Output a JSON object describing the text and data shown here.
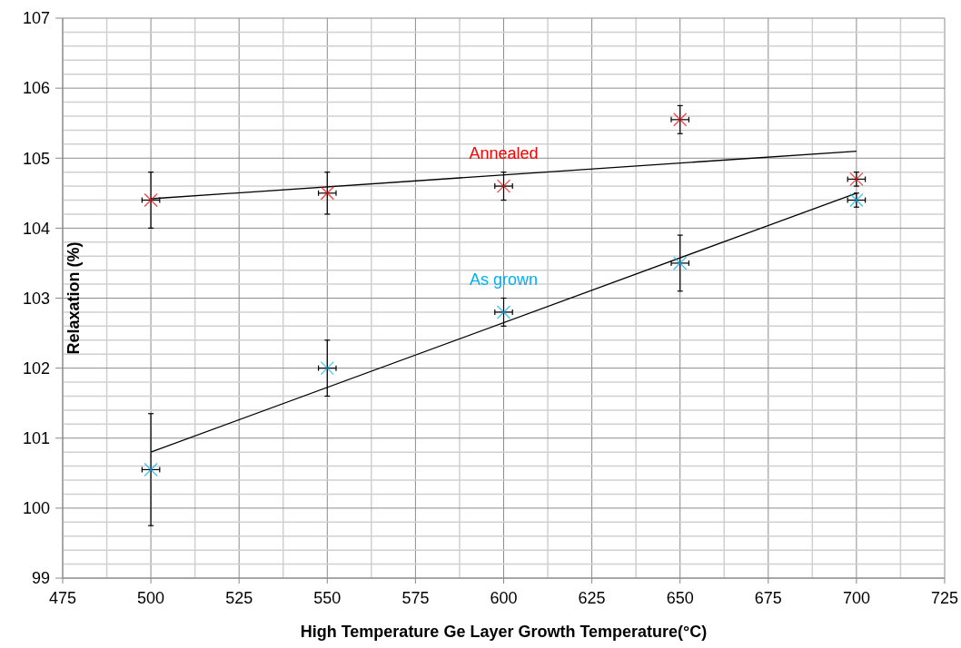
{
  "chart_data": {
    "type": "scatter",
    "xlabel": "High Temperature Ge Layer Growth Temperature(°C)",
    "ylabel": "Relaxation (%)",
    "xlim": [
      475,
      725
    ],
    "ylim": [
      99,
      107
    ],
    "xticks": [
      475,
      {
        "value": 487.5,
        "label": null
      },
      500,
      {
        "value": 512.5,
        "label": null
      },
      525,
      {
        "value": 537.5,
        "label": null
      },
      550,
      {
        "value": 562.5,
        "label": null
      },
      575,
      {
        "value": 587.5,
        "label": null
      },
      600,
      {
        "value": 612.5,
        "label": null
      },
      625,
      {
        "value": 637.5,
        "label": null
      },
      650,
      {
        "value": 662.5,
        "label": null
      },
      675,
      {
        "value": 687.5,
        "label": null
      },
      700,
      {
        "value": 712.5,
        "label": null
      },
      725
    ],
    "yticks": [
      99,
      {
        "value": 99.2,
        "label": null
      },
      {
        "value": 99.4,
        "label": null
      },
      {
        "value": 99.6,
        "label": null
      },
      {
        "value": 99.8,
        "label": null
      },
      100,
      {
        "value": 100.2,
        "label": null
      },
      {
        "value": 100.4,
        "label": null
      },
      {
        "value": 100.6,
        "label": null
      },
      {
        "value": 100.8,
        "label": null
      },
      101,
      {
        "value": 101.2,
        "label": null
      },
      {
        "value": 101.4,
        "label": null
      },
      {
        "value": 101.6,
        "label": null
      },
      {
        "value": 101.8,
        "label": null
      },
      102,
      {
        "value": 102.2,
        "label": null
      },
      {
        "value": 102.4,
        "label": null
      },
      {
        "value": 102.6,
        "label": null
      },
      {
        "value": 102.8,
        "label": null
      },
      103,
      {
        "value": 103.2,
        "label": null
      },
      {
        "value": 103.4,
        "label": null
      },
      {
        "value": 103.6,
        "label": null
      },
      {
        "value": 103.8,
        "label": null
      },
      104,
      {
        "value": 104.2,
        "label": null
      },
      {
        "value": 104.4,
        "label": null
      },
      {
        "value": 104.6,
        "label": null
      },
      {
        "value": 104.8,
        "label": null
      },
      105,
      {
        "value": 105.2,
        "label": null
      },
      {
        "value": 105.4,
        "label": null
      },
      {
        "value": 105.6,
        "label": null
      },
      {
        "value": 105.8,
        "label": null
      },
      106,
      {
        "value": 106.2,
        "label": null
      },
      {
        "value": 106.4,
        "label": null
      },
      {
        "value": 106.6,
        "label": null
      },
      {
        "value": 106.8,
        "label": null
      },
      107
    ],
    "grid": true,
    "series": [
      {
        "name": "Annealed",
        "marker": "cross",
        "color": "#ff0000",
        "x": [
          500,
          550,
          600,
          650,
          700
        ],
        "values": [
          104.4,
          104.5,
          104.6,
          105.55,
          104.7
        ],
        "errors": [
          0.4,
          0.3,
          0.2,
          0.2,
          0.1
        ],
        "xerrors": [
          2.5,
          2.5,
          2.5,
          2.5,
          2.5
        ]
      },
      {
        "name": "As grown",
        "marker": "cross",
        "color": "#00b0f0",
        "x": [
          500,
          550,
          600,
          650,
          700
        ],
        "values": [
          100.55,
          102.0,
          102.8,
          103.5,
          104.4
        ],
        "errors": [
          0.8,
          0.4,
          0.2,
          0.4,
          0.1
        ],
        "xerrors": [
          2.5,
          2.5,
          2.5,
          2.5,
          2.5
        ]
      },
      {
        "type": "line",
        "color": "#000000",
        "x": [
          500,
          700
        ],
        "values": [
          104.42,
          105.1
        ]
      },
      {
        "type": "line",
        "color": "#000000",
        "x": [
          500,
          700
        ],
        "values": [
          100.8,
          104.5
        ]
      }
    ]
  }
}
